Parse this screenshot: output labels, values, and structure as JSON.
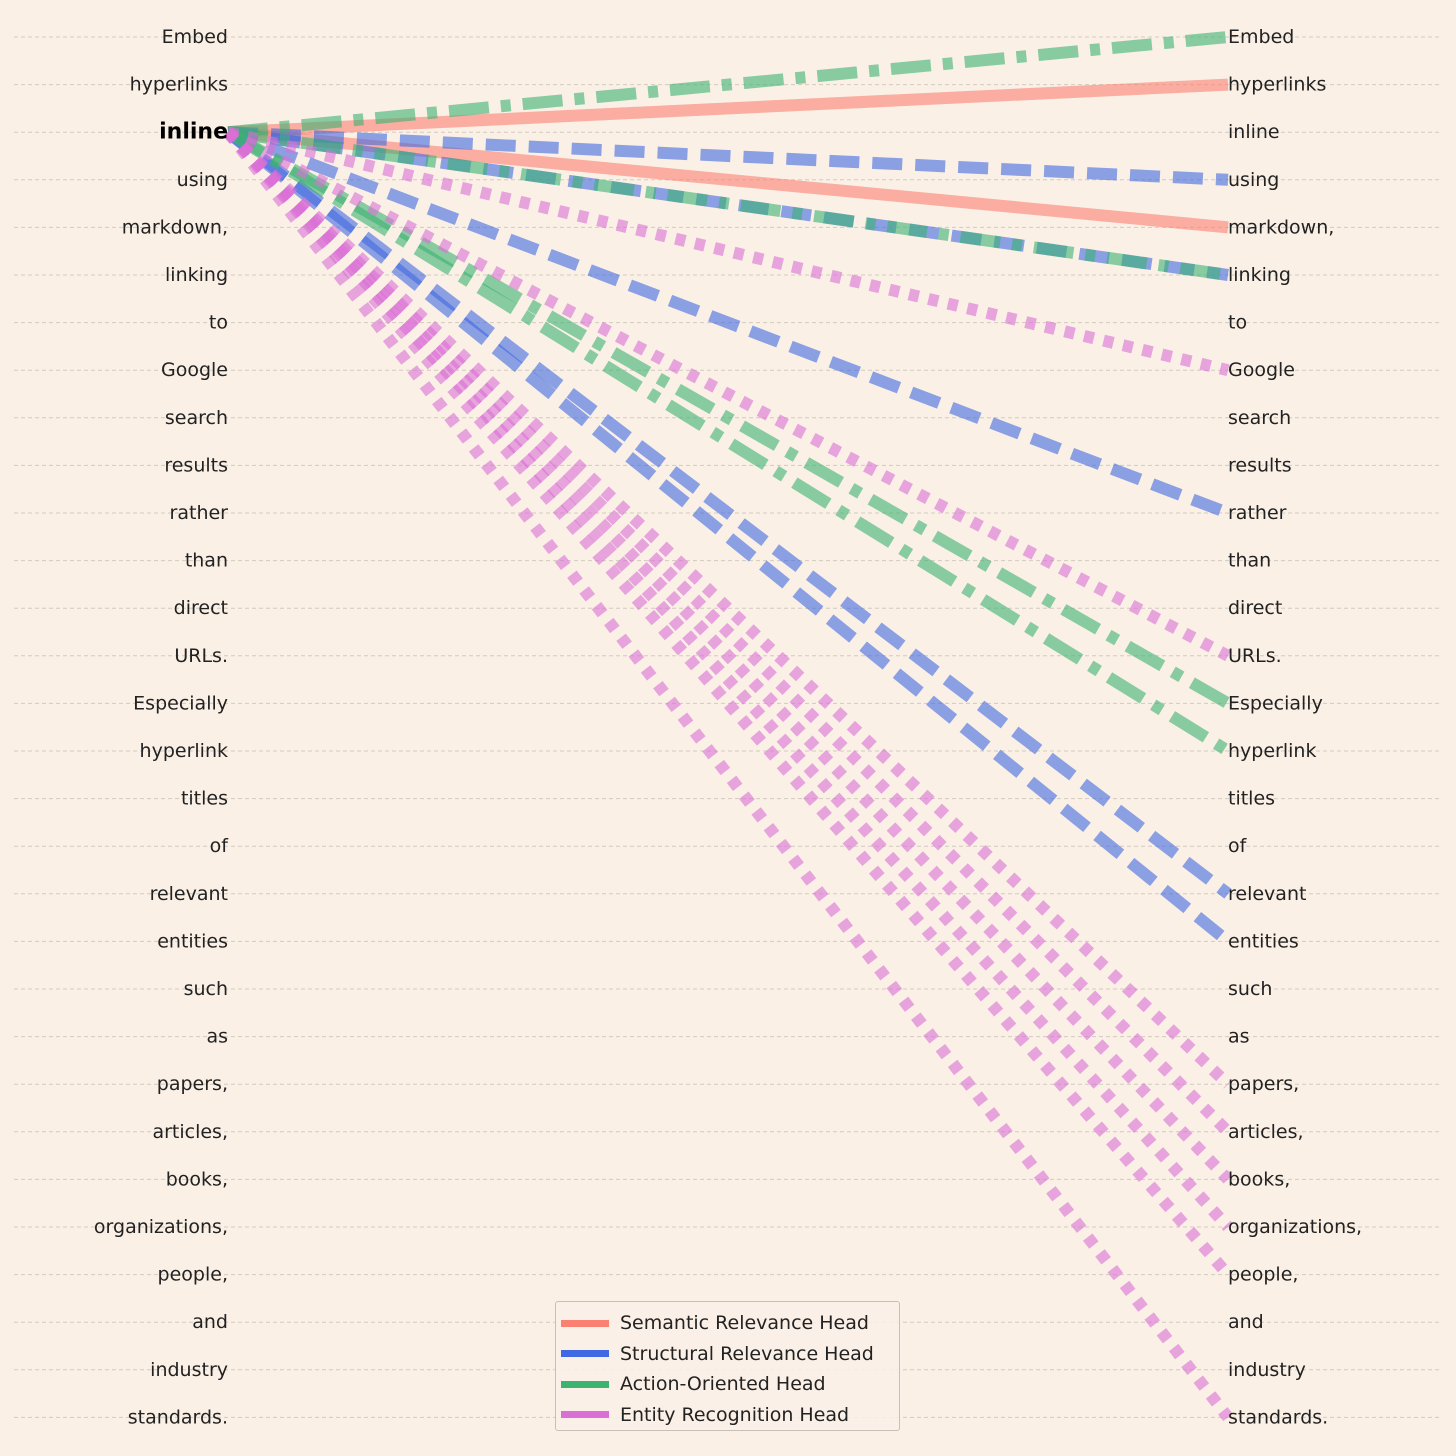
{
  "tokens": [
    "Embed",
    "hyperlinks",
    "inline",
    "using",
    "markdown,",
    "linking",
    "to",
    "Google",
    "search",
    "results",
    "rather",
    "than",
    "direct",
    "URLs.",
    "Especially",
    "hyperlink",
    "titles",
    "of",
    "relevant",
    "entities",
    "such",
    "as",
    "papers,",
    "articles,",
    "books,",
    "organizations,",
    "people,",
    "and",
    "industry",
    "standards."
  ],
  "highlighted_token_index": 2,
  "heads": [
    {
      "name": "Semantic Relevance Head",
      "color": "#fa8072",
      "dash": "solid"
    },
    {
      "name": "Structural Relevance Head",
      "color": "#4169e1",
      "dash": "dashed"
    },
    {
      "name": "Action-Oriented Head",
      "color": "#3cb371",
      "dash": "dashdot"
    },
    {
      "name": "Entity Recognition Head",
      "color": "#da70d6",
      "dash": "dotted"
    }
  ],
  "links": [
    {
      "head": 0,
      "targets": [
        1,
        4
      ]
    },
    {
      "head": 1,
      "targets": [
        3,
        5,
        10,
        18,
        19
      ]
    },
    {
      "head": 2,
      "targets": [
        0,
        5,
        14,
        15
      ]
    },
    {
      "head": 3,
      "targets": [
        7,
        13,
        22,
        23,
        24,
        25,
        26,
        29
      ]
    }
  ]
}
